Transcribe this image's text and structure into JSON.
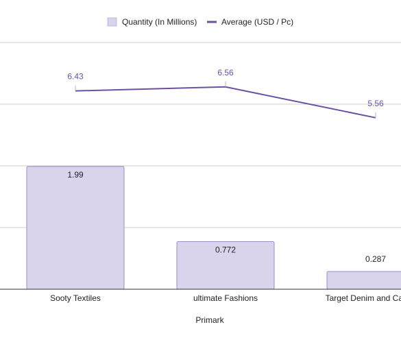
{
  "chart_data": {
    "type": "bar",
    "title": "",
    "xlabel": "Primark",
    "categories": [
      "Sooty Textiles",
      "ultimate Fashions",
      "Target Denim and Casual V"
    ],
    "series": [
      {
        "name": "Quantity (In Millions)",
        "type": "bar",
        "axis": "left",
        "color": "#d9d3eb",
        "stroke": "#9a8ec7",
        "values": [
          1.99,
          0.772,
          0.287
        ],
        "labels": [
          "1.99",
          "0.772",
          "0.287"
        ]
      },
      {
        "name": "Average (USD / Pc)",
        "type": "line",
        "axis": "right",
        "color": "#6a4fa3",
        "values": [
          6.43,
          6.56,
          5.56
        ],
        "labels": [
          "6.43",
          "6.56",
          "5.56"
        ]
      }
    ],
    "left_axis": {
      "ylim": [
        0,
        4
      ]
    },
    "right_axis": {
      "ylim": [
        0,
        8
      ]
    },
    "grid": true,
    "legend_position": "top"
  }
}
